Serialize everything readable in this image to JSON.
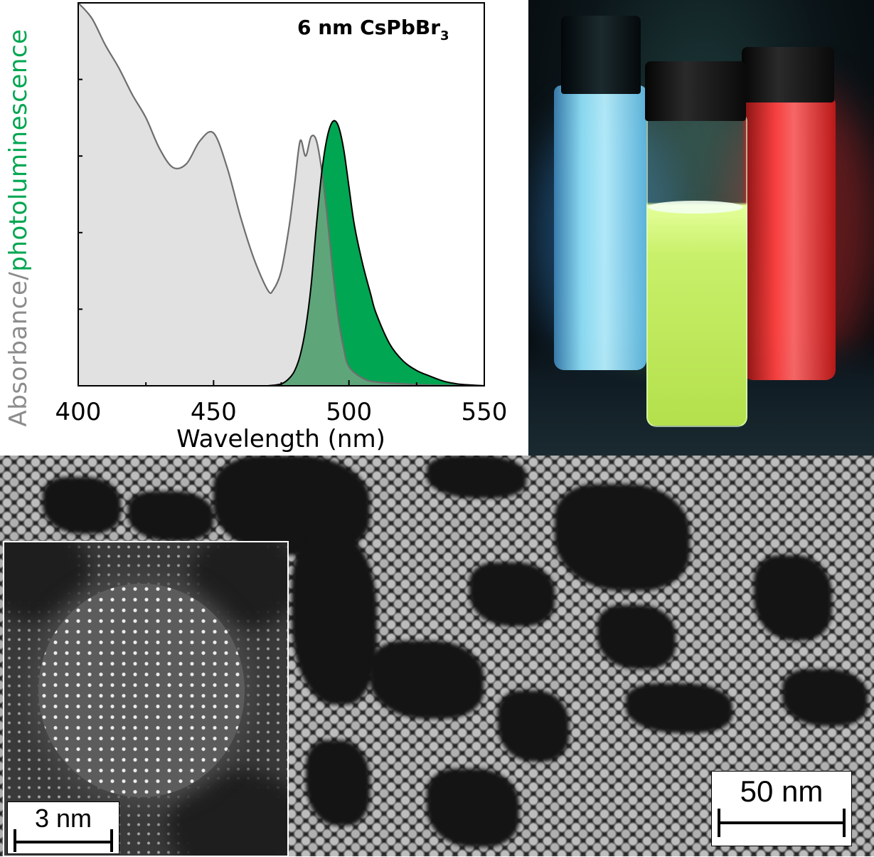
{
  "chart_data": {
    "type": "area",
    "title": "6 nm CsPbBr",
    "title_subscript": "3",
    "xlabel": "Wavelength (nm)",
    "ylabel_parts": [
      "Absorbance",
      "/",
      "photoluminescence"
    ],
    "xlim": [
      400,
      550
    ],
    "ylim": [
      0,
      1
    ],
    "xticks": [
      400,
      450,
      500,
      550
    ],
    "y_tick_labels": false,
    "grid": false,
    "series": [
      {
        "name": "Absorbance",
        "color": "#8c8c8c",
        "fill": "#e1e1e1",
        "x": [
          400,
          405,
          410,
          415,
          420,
          425,
          430,
          435,
          440,
          445,
          450,
          455,
          460,
          465,
          470,
          472,
          475,
          478,
          480,
          482,
          484,
          486,
          488,
          490,
          492,
          494,
          496,
          498,
          500,
          505,
          510,
          520,
          530,
          540,
          550
        ],
        "y": [
          1.0,
          0.96,
          0.89,
          0.83,
          0.76,
          0.7,
          0.62,
          0.57,
          0.58,
          0.64,
          0.66,
          0.57,
          0.44,
          0.33,
          0.25,
          0.25,
          0.3,
          0.42,
          0.53,
          0.64,
          0.6,
          0.65,
          0.64,
          0.56,
          0.44,
          0.3,
          0.18,
          0.1,
          0.05,
          0.02,
          0.01,
          0.005,
          0.002,
          0.001,
          0.0
        ]
      },
      {
        "name": "Photoluminescence",
        "color": "#000000",
        "fill": "#00a651",
        "x": [
          470,
          475,
          478,
          480,
          482,
          484,
          486,
          488,
          490,
          492,
          494,
          496,
          498,
          500,
          502,
          505,
          508,
          510,
          515,
          520,
          525,
          530,
          535,
          540,
          545,
          550
        ],
        "y": [
          0.0,
          0.005,
          0.02,
          0.04,
          0.08,
          0.15,
          0.26,
          0.42,
          0.56,
          0.65,
          0.69,
          0.68,
          0.62,
          0.52,
          0.42,
          0.32,
          0.24,
          0.19,
          0.11,
          0.065,
          0.04,
          0.025,
          0.012,
          0.005,
          0.002,
          0.0
        ]
      }
    ],
    "overlap_fill": "#5fa57a"
  },
  "photo": {
    "vials": [
      {
        "label": "blue",
        "color": "#7fd8f0"
      },
      {
        "label": "green",
        "color": "#d8ff72"
      },
      {
        "label": "red",
        "color": "#ff3a3a"
      }
    ]
  },
  "tem": {
    "scalebar_main": "50 nm",
    "scalebar_inset": "3 nm"
  }
}
